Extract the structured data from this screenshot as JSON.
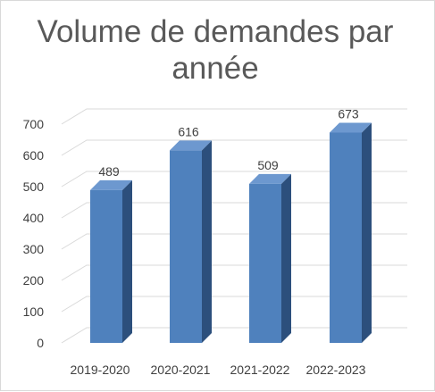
{
  "chart_data": {
    "type": "bar",
    "title": "Volume de demandes par année",
    "categories": [
      "2019-2020",
      "2020-2021",
      "2021-2022",
      "2022-2023"
    ],
    "values": [
      489,
      616,
      509,
      673
    ],
    "data_labels": [
      "489",
      "616",
      "509",
      "673"
    ],
    "y_ticks": [
      "0",
      "100",
      "200",
      "300",
      "400",
      "500",
      "600",
      "700"
    ],
    "ylim": [
      0,
      700
    ],
    "xlabel": "",
    "ylabel": "",
    "grid": true,
    "style": "3d-column",
    "colors": {
      "front": "#4f81bd",
      "side": "#2c4f7c",
      "top": "#6d98cf",
      "grid": "#d9d9d9"
    }
  }
}
